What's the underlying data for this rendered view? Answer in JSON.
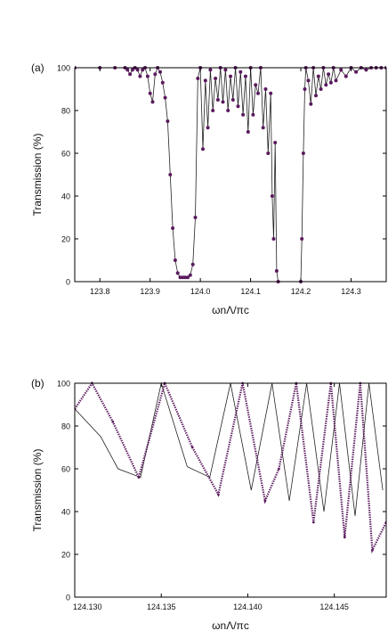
{
  "colors": {
    "marker": "#5a1a5e",
    "line": "#222222",
    "axis": "#000000"
  },
  "chart_data": [
    {
      "type": "line",
      "panel_label": "(a)",
      "xlabel": "ωnΛ/πc",
      "ylabel": "Transmission (%)",
      "xlim": [
        123.75,
        124.37
      ],
      "ylim": [
        0,
        100
      ],
      "x_ticks": [
        123.8,
        123.9,
        124.0,
        124.1,
        124.2,
        124.3
      ],
      "x_tick_labels": [
        "123.8",
        "123.9",
        "124.0",
        "124.1",
        "124.2",
        "124.3"
      ],
      "y_ticks": [
        0,
        20,
        40,
        60,
        80,
        100
      ],
      "y_tick_labels": [
        "0",
        "20",
        "40",
        "60",
        "80",
        "100"
      ],
      "series": [
        {
          "style": "line-with-markers",
          "x": [
            123.75,
            123.8,
            123.83,
            123.85,
            123.855,
            123.86,
            123.865,
            123.87,
            123.875,
            123.88,
            123.885,
            123.89,
            123.895,
            123.9,
            123.905,
            123.91,
            123.915,
            123.92,
            123.925,
            123.93,
            123.935,
            123.94,
            123.945,
            123.95,
            123.955,
            123.96,
            123.965,
            123.97,
            123.975,
            123.98,
            123.985,
            123.99,
            123.995,
            124.0,
            124.005,
            124.01,
            124.015,
            124.02,
            124.025,
            124.03,
            124.035,
            124.04,
            124.045,
            124.05,
            124.055,
            124.06,
            124.065,
            124.07,
            124.075,
            124.08,
            124.085,
            124.09,
            124.095,
            124.1,
            124.105,
            124.11,
            124.115,
            124.12,
            124.125,
            124.13,
            124.135,
            124.14,
            124.143,
            124.146,
            124.149,
            124.152,
            124.155,
            124.2,
            124.202,
            124.205,
            124.208,
            124.21,
            124.215,
            124.22,
            124.225,
            124.23,
            124.235,
            124.24,
            124.245,
            124.25,
            124.255,
            124.26,
            124.265,
            124.27,
            124.28,
            124.29,
            124.3,
            124.31,
            124.32,
            124.33,
            124.34,
            124.35,
            124.36,
            124.37
          ],
          "y": [
            100,
            100,
            100,
            100,
            99,
            97,
            99,
            100,
            99,
            96,
            99,
            100,
            96,
            88,
            84,
            97,
            100,
            98,
            93,
            86,
            75,
            50,
            25,
            10,
            4,
            2,
            2,
            2,
            2,
            3,
            8,
            30,
            95,
            100,
            62,
            94,
            72,
            99,
            80,
            95,
            85,
            100,
            84,
            99,
            80,
            96,
            85,
            100,
            82,
            98,
            78,
            96,
            70,
            100,
            78,
            92,
            88,
            100,
            72,
            90,
            60,
            88,
            40,
            20,
            65,
            5,
            0,
            0,
            20,
            60,
            90,
            100,
            94,
            83,
            100,
            87,
            96,
            90,
            100,
            92,
            97,
            93,
            100,
            94,
            99,
            96,
            100,
            98,
            100,
            99,
            100,
            100,
            100,
            100
          ]
        }
      ]
    },
    {
      "type": "line",
      "panel_label": "(b)",
      "xlabel": "ωnΛ/πc",
      "ylabel": "Transmission (%)",
      "xlim": [
        124.13,
        124.148
      ],
      "ylim": [
        0,
        100
      ],
      "x_ticks": [
        124.13,
        124.135,
        124.14,
        124.145
      ],
      "x_tick_labels": [
        "124.130",
        "124.135",
        "124.140",
        "124.145"
      ],
      "y_ticks": [
        0,
        20,
        40,
        60,
        80,
        100
      ],
      "y_tick_labels": [
        "0",
        "20",
        "40",
        "60",
        "80",
        "100"
      ],
      "series": [
        {
          "style": "thin-line",
          "x": [
            124.13,
            124.1315,
            124.1325,
            124.1338,
            124.135,
            124.1365,
            124.1378,
            124.139,
            124.1402,
            124.1414,
            124.1424,
            124.1434,
            124.1444,
            124.1453,
            124.1462,
            124.147,
            124.1478
          ],
          "y": [
            88,
            75,
            60,
            56,
            100,
            61,
            56,
            100,
            50,
            100,
            45,
            100,
            40,
            100,
            38,
            100,
            50
          ]
        },
        {
          "style": "dotted",
          "x": [
            124.13,
            124.131,
            124.1322,
            124.1337,
            124.1352,
            124.1368,
            124.1383,
            124.1397,
            124.141,
            124.1418,
            124.1428,
            124.1438,
            124.1448,
            124.1456,
            124.1465,
            124.1472,
            124.148
          ],
          "y": [
            88,
            100,
            82,
            56,
            100,
            70,
            48,
            100,
            45,
            60,
            100,
            35,
            100,
            28,
            100,
            22,
            35
          ]
        }
      ]
    }
  ]
}
